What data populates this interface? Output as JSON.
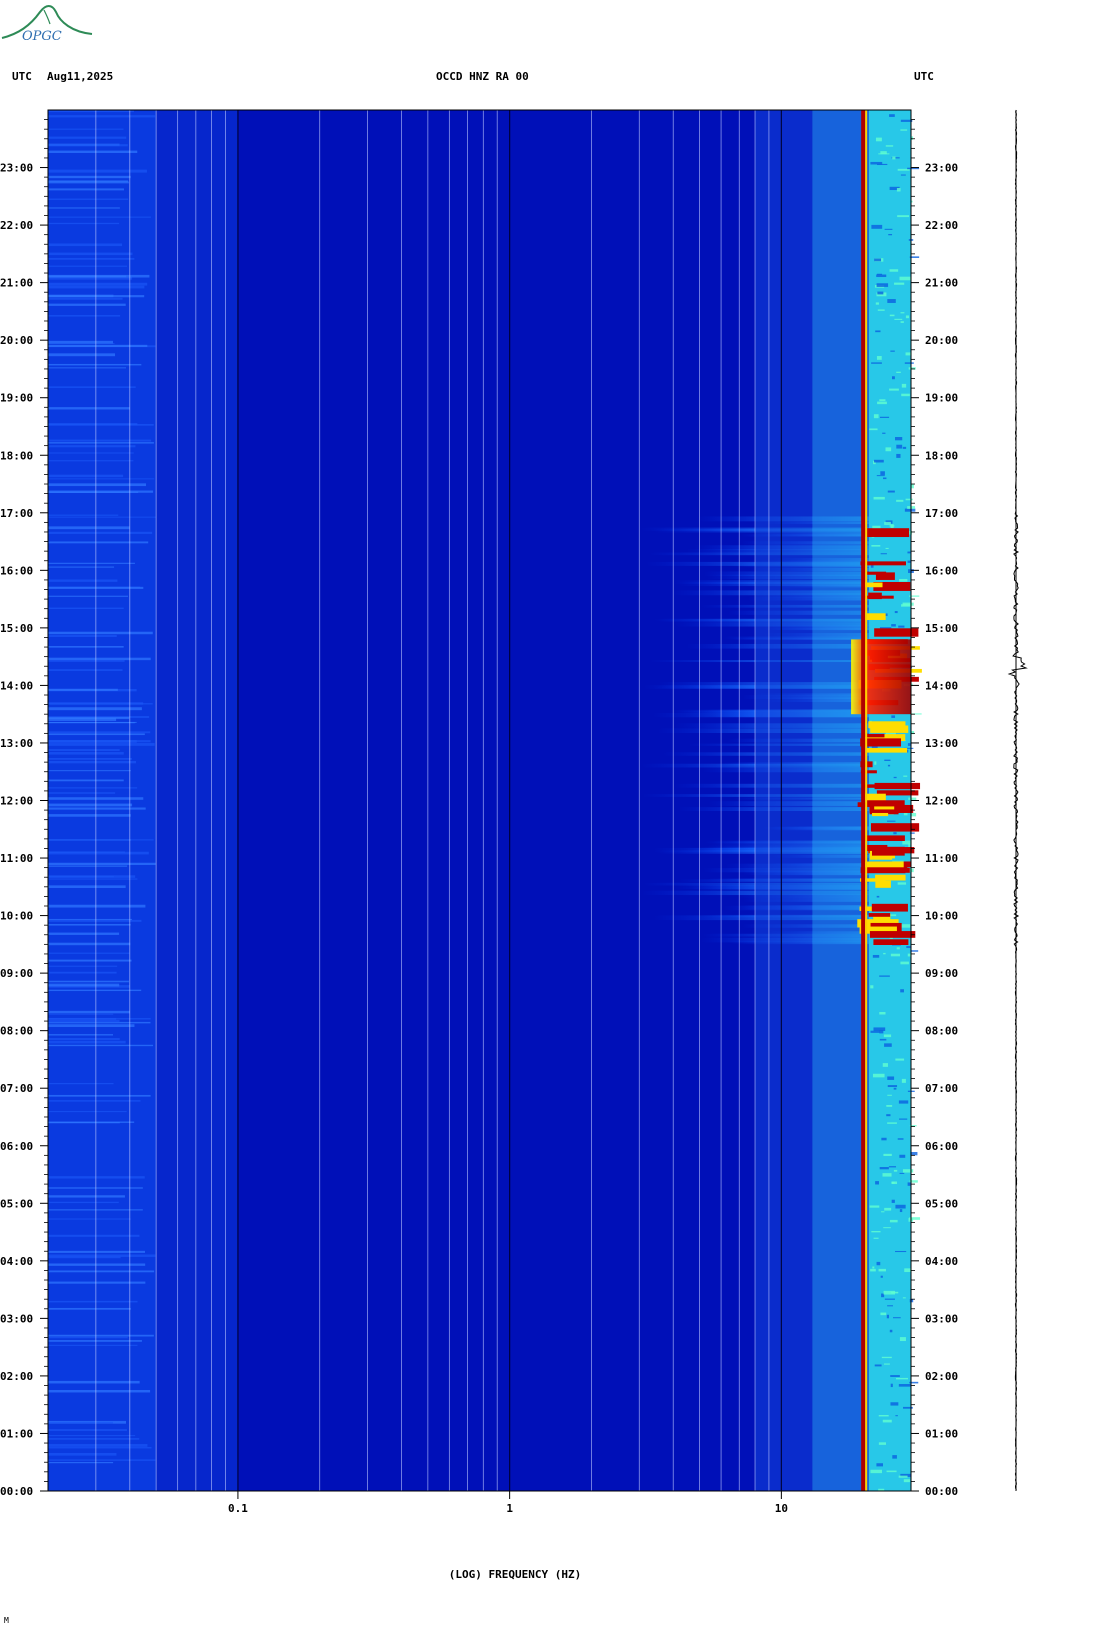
{
  "header": {
    "left_timezone": "UTC",
    "date": "Aug11,2025",
    "station": "OCCD HNZ RA 00",
    "right_timezone": "UTC"
  },
  "logo": {
    "text": "OPGC",
    "icon": "volcano-logo-icon",
    "color": "#2e8b57"
  },
  "chart_data": {
    "type": "heatmap",
    "title": "OCCD HNZ RA 00",
    "xlabel": "(LOG) FREQUENCY (HZ)",
    "ylabel": "",
    "x_scale": "log",
    "xlim": [
      0.02,
      30
    ],
    "ylim_hours": [
      0,
      24
    ],
    "x_tick_labels": [
      {
        "value": 0.1,
        "label": "0.1"
      },
      {
        "value": 1,
        "label": "1"
      },
      {
        "value": 10,
        "label": "10"
      }
    ],
    "y_tick_labels": [
      "00:00",
      "01:00",
      "02:00",
      "03:00",
      "04:00",
      "05:00",
      "06:00",
      "07:00",
      "08:00",
      "09:00",
      "10:00",
      "11:00",
      "12:00",
      "13:00",
      "14:00",
      "15:00",
      "16:00",
      "17:00",
      "18:00",
      "19:00",
      "20:00",
      "21:00",
      "22:00",
      "23:00"
    ],
    "colormap": [
      "#00008b",
      "#0000ff",
      "#00bfff",
      "#00ffff",
      "#ffff00",
      "#ff0000",
      "#8b0000"
    ],
    "features": [
      {
        "name": "persistent-line",
        "frequency_hz": 20,
        "hours": [
          0,
          24
        ],
        "intensity": "max"
      },
      {
        "name": "high-band",
        "frequency_hz": [
          21,
          29
        ],
        "hours": [
          0,
          24
        ],
        "intensity": "medium"
      },
      {
        "name": "activity-burst",
        "frequency_hz": [
          3,
          29
        ],
        "hours": [
          9.5,
          17
        ],
        "intensity": "high"
      },
      {
        "name": "peak-burst",
        "frequency_hz": [
          19,
          29
        ],
        "hours": [
          13.5,
          14.8
        ],
        "intensity": "max"
      }
    ],
    "side_trace": {
      "type": "seismogram",
      "peak_hour": 14.3
    }
  },
  "footer": {
    "mark": "M"
  }
}
